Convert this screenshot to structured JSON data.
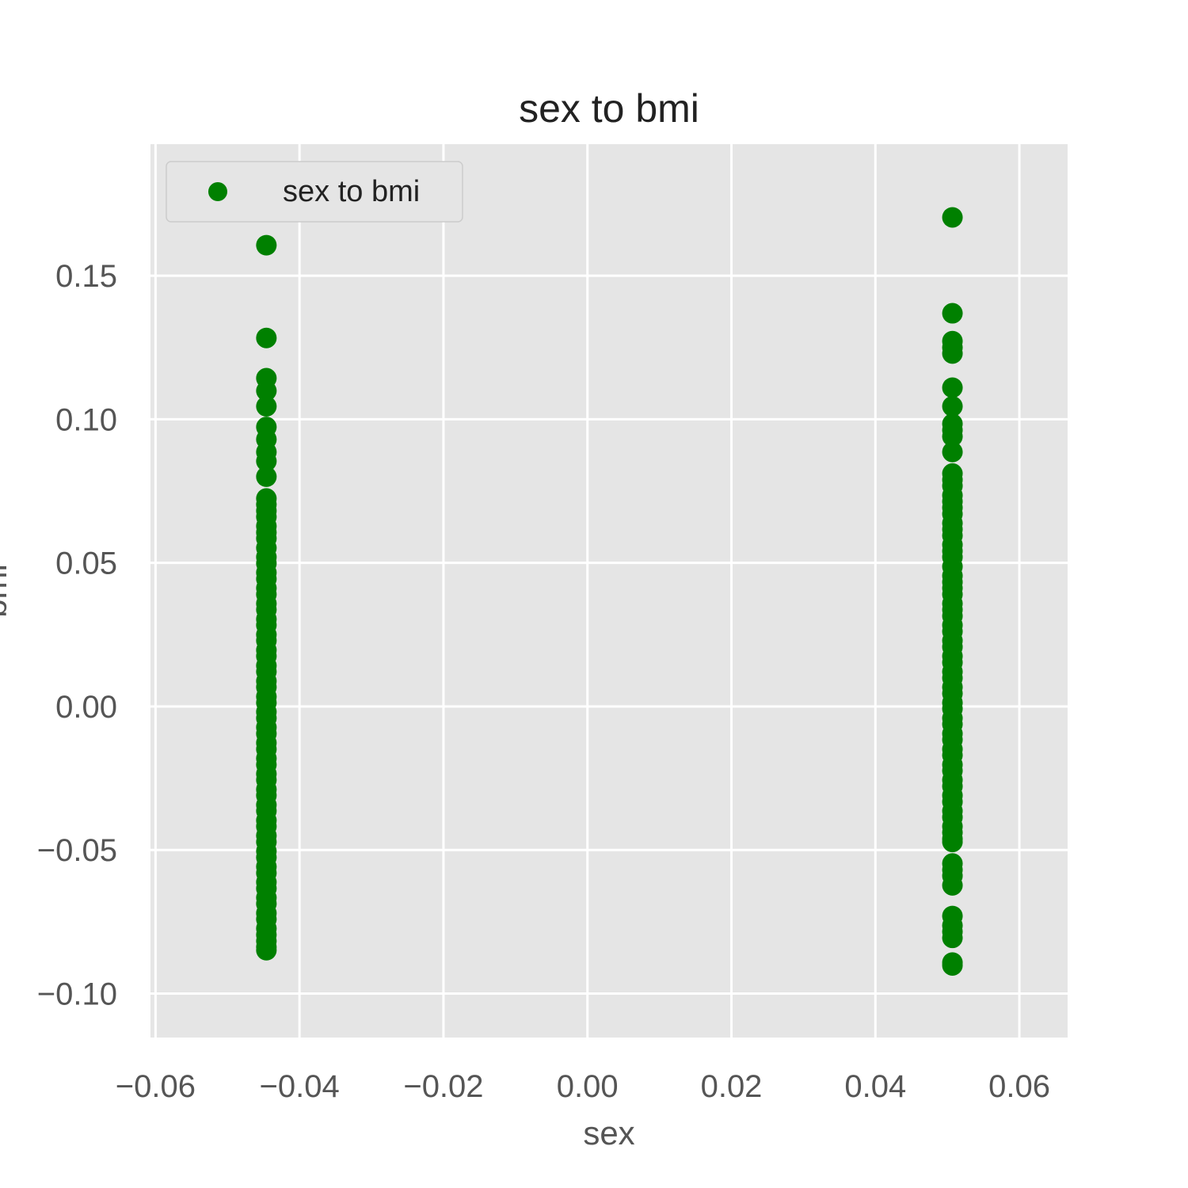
{
  "chart_data": {
    "type": "scatter",
    "title": "sex to bmi",
    "xlabel": "sex",
    "ylabel": "bmi",
    "xlim": [
      -0.0607,
      0.0667
    ],
    "ylim": [
      -0.1153,
      0.1958
    ],
    "x_ticks": [
      -0.06,
      -0.04,
      -0.02,
      0.0,
      0.02,
      0.04,
      0.06
    ],
    "x_tick_labels": [
      "−0.06",
      "−0.04",
      "−0.02",
      "0.00",
      "0.02",
      "0.04",
      "0.06"
    ],
    "y_ticks": [
      -0.1,
      -0.05,
      0.0,
      0.05,
      0.1,
      0.15
    ],
    "y_tick_labels": [
      "−0.10",
      "−0.05",
      "0.00",
      "0.05",
      "0.10",
      "0.15"
    ],
    "grid": true,
    "legend": {
      "position": "top-left",
      "entries": [
        "sex to bmi"
      ]
    },
    "colors": {
      "background": "#e5e5e5",
      "grid": "#ffffff",
      "marker": "#008000",
      "text": "#555555",
      "title": "#222222"
    },
    "series": [
      {
        "name": "sex to bmi",
        "points": [
          [
            -0.0446,
            0.1606
          ],
          [
            -0.0446,
            0.1283
          ],
          [
            -0.0446,
            0.1143
          ],
          [
            -0.0446,
            0.1099
          ],
          [
            -0.0446,
            0.1045
          ],
          [
            -0.0446,
            0.0973
          ],
          [
            -0.0446,
            0.093
          ],
          [
            -0.0446,
            0.0886
          ],
          [
            -0.0446,
            0.0854
          ],
          [
            -0.0446,
            0.08
          ],
          [
            -0.0446,
            0.0724
          ],
          [
            -0.0446,
            0.0703
          ],
          [
            -0.0446,
            0.0681
          ],
          [
            -0.0446,
            0.066
          ],
          [
            -0.0446,
            0.0628
          ],
          [
            -0.0446,
            0.0606
          ],
          [
            -0.0446,
            0.0585
          ],
          [
            -0.0446,
            0.0552
          ],
          [
            -0.0446,
            0.052
          ],
          [
            -0.0446,
            0.0498
          ],
          [
            -0.0446,
            0.0466
          ],
          [
            -0.0446,
            0.0444
          ],
          [
            -0.0446,
            0.0412
          ],
          [
            -0.0446,
            0.039
          ],
          [
            -0.0446,
            0.0358
          ],
          [
            -0.0446,
            0.0337
          ],
          [
            -0.0446,
            0.0304
          ],
          [
            -0.0446,
            0.0283
          ],
          [
            -0.0446,
            0.025
          ],
          [
            -0.0446,
            0.0229
          ],
          [
            -0.0446,
            0.0196
          ],
          [
            -0.0446,
            0.0175
          ],
          [
            -0.0446,
            0.0142
          ],
          [
            -0.0446,
            0.0121
          ],
          [
            -0.0446,
            0.0088
          ],
          [
            -0.0446,
            0.0067
          ],
          [
            -0.0446,
            0.0034
          ],
          [
            -0.0446,
            0.0013
          ],
          [
            -0.0446,
            -0.0019
          ],
          [
            -0.0446,
            -0.0041
          ],
          [
            -0.0446,
            -0.0073
          ],
          [
            -0.0446,
            -0.0095
          ],
          [
            -0.0446,
            -0.0127
          ],
          [
            -0.0446,
            -0.0149
          ],
          [
            -0.0446,
            -0.0181
          ],
          [
            -0.0446,
            -0.0203
          ],
          [
            -0.0446,
            -0.0235
          ],
          [
            -0.0446,
            -0.0256
          ],
          [
            -0.0446,
            -0.0289
          ],
          [
            -0.0446,
            -0.031
          ],
          [
            -0.0446,
            -0.0343
          ],
          [
            -0.0446,
            -0.0364
          ],
          [
            -0.0446,
            -0.0397
          ],
          [
            -0.0446,
            -0.0418
          ],
          [
            -0.0446,
            -0.045
          ],
          [
            -0.0446,
            -0.0472
          ],
          [
            -0.0446,
            -0.0504
          ],
          [
            -0.0446,
            -0.0526
          ],
          [
            -0.0446,
            -0.0558
          ],
          [
            -0.0446,
            -0.058
          ],
          [
            -0.0446,
            -0.0612
          ],
          [
            -0.0446,
            -0.0634
          ],
          [
            -0.0446,
            -0.0666
          ],
          [
            -0.0446,
            -0.0687
          ],
          [
            -0.0446,
            -0.072
          ],
          [
            -0.0446,
            -0.0741
          ],
          [
            -0.0446,
            -0.0773
          ],
          [
            -0.0446,
            -0.0795
          ],
          [
            -0.0446,
            -0.0817
          ],
          [
            -0.0446,
            -0.0838
          ],
          [
            -0.0446,
            -0.0849
          ],
          [
            0.0507,
            0.1703
          ],
          [
            0.0507,
            0.1369
          ],
          [
            0.0507,
            0.1272
          ],
          [
            0.0507,
            0.125
          ],
          [
            0.0507,
            0.1229
          ],
          [
            0.0507,
            0.111
          ],
          [
            0.0507,
            0.1045
          ],
          [
            0.0507,
            0.0984
          ],
          [
            0.0507,
            0.0962
          ],
          [
            0.0507,
            0.094
          ],
          [
            0.0507,
            0.0886
          ],
          [
            0.0507,
            0.0811
          ],
          [
            0.0507,
            0.0789
          ],
          [
            0.0507,
            0.0768
          ],
          [
            0.0507,
            0.0735
          ],
          [
            0.0507,
            0.0714
          ],
          [
            0.0507,
            0.0692
          ],
          [
            0.0507,
            0.067
          ],
          [
            0.0507,
            0.0638
          ],
          [
            0.0507,
            0.0617
          ],
          [
            0.0507,
            0.0595
          ],
          [
            0.0507,
            0.0563
          ],
          [
            0.0507,
            0.0541
          ],
          [
            0.0507,
            0.052
          ],
          [
            0.0507,
            0.0487
          ],
          [
            0.0507,
            0.0455
          ],
          [
            0.0507,
            0.0433
          ],
          [
            0.0507,
            0.0412
          ],
          [
            0.0507,
            0.039
          ],
          [
            0.0507,
            0.0358
          ],
          [
            0.0507,
            0.0337
          ],
          [
            0.0507,
            0.0315
          ],
          [
            0.0507,
            0.0283
          ],
          [
            0.0507,
            0.0261
          ],
          [
            0.0507,
            0.0229
          ],
          [
            0.0507,
            0.0207
          ],
          [
            0.0507,
            0.0175
          ],
          [
            0.0507,
            0.0153
          ],
          [
            0.0507,
            0.0121
          ],
          [
            0.0507,
            0.0099
          ],
          [
            0.0507,
            0.0067
          ],
          [
            0.0507,
            0.0045
          ],
          [
            0.0507,
            0.0013
          ],
          [
            0.0507,
            -0.0008
          ],
          [
            0.0507,
            -0.0041
          ],
          [
            0.0507,
            -0.0062
          ],
          [
            0.0507,
            -0.0095
          ],
          [
            0.0507,
            -0.0116
          ],
          [
            0.0507,
            -0.0149
          ],
          [
            0.0507,
            -0.017
          ],
          [
            0.0507,
            -0.0203
          ],
          [
            0.0507,
            -0.0224
          ],
          [
            0.0507,
            -0.0256
          ],
          [
            0.0507,
            -0.0278
          ],
          [
            0.0507,
            -0.031
          ],
          [
            0.0507,
            -0.0332
          ],
          [
            0.0507,
            -0.0364
          ],
          [
            0.0507,
            -0.0386
          ],
          [
            0.0507,
            -0.0418
          ],
          [
            0.0507,
            -0.0439
          ],
          [
            0.0507,
            -0.0461
          ],
          [
            0.0507,
            -0.0472
          ],
          [
            0.0507,
            -0.0547
          ],
          [
            0.0507,
            -0.0569
          ],
          [
            0.0507,
            -0.059
          ],
          [
            0.0507,
            -0.0623
          ],
          [
            0.0507,
            -0.073
          ],
          [
            0.0507,
            -0.0763
          ],
          [
            0.0507,
            -0.0784
          ],
          [
            0.0507,
            -0.0806
          ],
          [
            0.0507,
            -0.0892
          ],
          [
            0.0507,
            -0.0902
          ]
        ]
      }
    ]
  }
}
